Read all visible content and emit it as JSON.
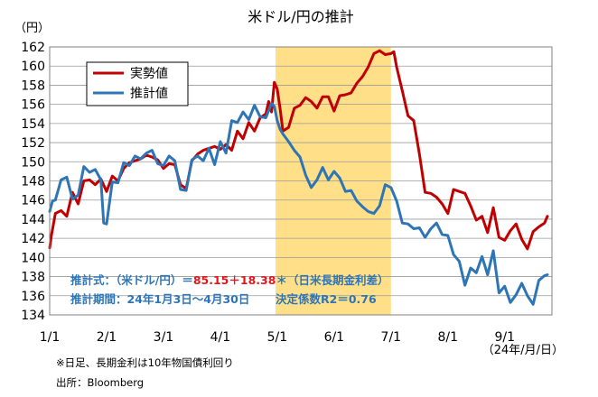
{
  "chart_data": {
    "type": "line",
    "title": "米ドル/円の推計",
    "ylabel": "（円）",
    "xlabel": "（24年/月/日）",
    "ylim": [
      134,
      162
    ],
    "yticks": [
      134,
      136,
      138,
      140,
      142,
      144,
      146,
      148,
      150,
      152,
      154,
      156,
      158,
      160,
      162
    ],
    "xlim": [
      0,
      8.83
    ],
    "xticks": [
      0,
      1,
      2,
      3,
      4,
      5,
      6,
      7,
      8
    ],
    "xtick_labels": [
      "1/1",
      "2/1",
      "3/1",
      "4/1",
      "5/1",
      "6/1",
      "7/1",
      "8/1",
      "9/1"
    ],
    "grid": true,
    "shaded_region": {
      "x0": 3.97,
      "x1": 6.0
    },
    "legend": [
      "実勢値",
      "推計値"
    ],
    "series": [
      {
        "name": "実勢値",
        "color": "#c00000",
        "x": [
          0.0,
          0.03,
          0.1,
          0.2,
          0.3,
          0.4,
          0.5,
          0.6,
          0.7,
          0.8,
          0.9,
          1.0,
          1.1,
          1.2,
          1.3,
          1.4,
          1.5,
          1.6,
          1.7,
          1.8,
          1.9,
          2.0,
          2.1,
          2.2,
          2.3,
          2.4,
          2.5,
          2.6,
          2.7,
          2.8,
          2.9,
          3.0,
          3.1,
          3.2,
          3.3,
          3.4,
          3.5,
          3.6,
          3.7,
          3.8,
          3.85,
          3.9,
          3.95,
          4.0,
          4.05,
          4.1,
          4.2,
          4.3,
          4.4,
          4.5,
          4.6,
          4.7,
          4.8,
          4.9,
          5.0,
          5.1,
          5.2,
          5.3,
          5.4,
          5.5,
          5.6,
          5.7,
          5.8,
          5.9,
          6.0,
          6.05,
          6.1,
          6.2,
          6.3,
          6.4,
          6.5,
          6.6,
          6.7,
          6.8,
          6.9,
          7.0,
          7.1,
          7.2,
          7.3,
          7.4,
          7.5,
          7.6,
          7.7,
          7.8,
          7.9,
          8.0,
          8.1,
          8.2,
          8.3,
          8.4,
          8.5,
          8.6,
          8.7,
          8.75
        ],
        "values": [
          141.0,
          142.3,
          144.6,
          144.9,
          144.3,
          146.8,
          145.6,
          148.0,
          148.1,
          147.6,
          148.2,
          146.9,
          148.5,
          148.0,
          149.3,
          149.9,
          150.1,
          150.3,
          150.7,
          150.5,
          150.2,
          149.3,
          149.8,
          149.7,
          147.6,
          147.2,
          150.1,
          150.8,
          151.2,
          151.4,
          151.6,
          151.3,
          151.8,
          151.2,
          153.2,
          152.4,
          154.1,
          153.2,
          154.6,
          155.0,
          156.3,
          155.2,
          158.3,
          157.6,
          155.6,
          153.2,
          153.6,
          155.6,
          155.9,
          156.7,
          156.3,
          155.6,
          156.8,
          156.8,
          155.3,
          156.9,
          157.0,
          157.2,
          158.2,
          158.9,
          159.9,
          161.3,
          161.6,
          161.2,
          161.3,
          161.5,
          159.9,
          157.4,
          154.8,
          154.3,
          150.8,
          146.8,
          146.7,
          146.3,
          145.6,
          144.6,
          147.1,
          146.9,
          146.7,
          145.4,
          143.9,
          144.3,
          142.6,
          145.2,
          142.1,
          141.8,
          142.8,
          143.5,
          141.9,
          140.9,
          142.7,
          143.2,
          143.6,
          144.3
        ]
      },
      {
        "name": "推計値",
        "color": "#2e75b6",
        "x": [
          0.0,
          0.05,
          0.1,
          0.2,
          0.3,
          0.4,
          0.5,
          0.6,
          0.7,
          0.8,
          0.9,
          0.95,
          1.0,
          1.1,
          1.2,
          1.3,
          1.4,
          1.5,
          1.6,
          1.7,
          1.8,
          1.9,
          2.0,
          2.1,
          2.2,
          2.3,
          2.4,
          2.5,
          2.6,
          2.7,
          2.8,
          2.9,
          3.0,
          3.1,
          3.2,
          3.3,
          3.4,
          3.5,
          3.6,
          3.7,
          3.8,
          3.9,
          3.95,
          4.0,
          4.05,
          4.1,
          4.2,
          4.3,
          4.4,
          4.5,
          4.6,
          4.7,
          4.8,
          4.9,
          5.0,
          5.1,
          5.2,
          5.3,
          5.4,
          5.5,
          5.6,
          5.7,
          5.8,
          5.9,
          6.0,
          6.05,
          6.1,
          6.2,
          6.3,
          6.4,
          6.5,
          6.6,
          6.7,
          6.8,
          6.9,
          7.0,
          7.1,
          7.2,
          7.3,
          7.4,
          7.5,
          7.6,
          7.7,
          7.8,
          7.9,
          8.0,
          8.1,
          8.2,
          8.3,
          8.4,
          8.5,
          8.6,
          8.7,
          8.75
        ],
        "values": [
          144.8,
          145.9,
          146.0,
          148.1,
          148.4,
          146.1,
          146.5,
          149.5,
          148.9,
          149.2,
          148.1,
          143.6,
          143.5,
          147.9,
          147.8,
          149.9,
          149.6,
          150.6,
          150.3,
          150.9,
          151.2,
          149.8,
          149.6,
          150.6,
          150.1,
          147.1,
          147.0,
          150.2,
          150.6,
          150.1,
          151.4,
          149.7,
          152.1,
          150.9,
          154.3,
          154.1,
          155.2,
          154.4,
          155.9,
          154.7,
          154.6,
          156.1,
          155.8,
          154.3,
          153.4,
          152.9,
          152.1,
          151.2,
          150.5,
          148.6,
          147.3,
          148.1,
          149.4,
          148.1,
          149.0,
          148.3,
          146.9,
          147.0,
          145.9,
          145.3,
          144.8,
          144.6,
          145.4,
          147.6,
          147.3,
          146.6,
          145.9,
          143.6,
          143.5,
          143.0,
          143.1,
          142.1,
          143.0,
          143.6,
          142.4,
          142.3,
          140.3,
          139.6,
          137.1,
          138.9,
          138.4,
          140.1,
          138.2,
          140.7,
          136.3,
          137.0,
          135.3,
          136.1,
          137.3,
          136.0,
          135.1,
          137.6,
          138.1,
          138.2
        ]
      }
    ],
    "annotations": {
      "formula_label": "推計式：（米ドル/円）＝",
      "formula_const": "85.15",
      "formula_plus": "＋",
      "formula_coef": "18.38",
      "formula_rest": "＊（日米長期金利差）",
      "period": "推計期間：24年1月3日〜4月30日",
      "r2": "決定係数R2＝0.76"
    }
  },
  "footnotes": {
    "note": "※日足、長期金利は10年物国債利回り",
    "source": "出所：Bloomberg"
  },
  "colors": {
    "actual": "#c00000",
    "estimate": "#2e75b6",
    "shade": "#ffe089",
    "formula_blue": "#2e75b6",
    "formula_red": "#e3161c"
  }
}
